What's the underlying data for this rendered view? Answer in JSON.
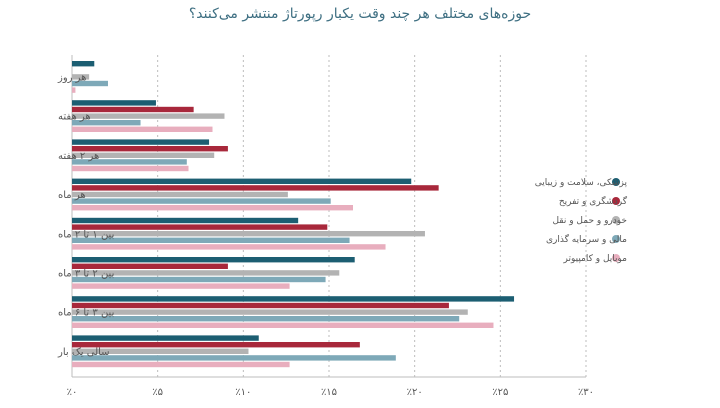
{
  "chart_data": {
    "type": "bar",
    "orientation": "horizontal",
    "title": "حوزه‌های مختلف هر چند وقت یکبار رپورتاژ منتشر می‌کنند؟",
    "xlabel": "",
    "ylabel": "",
    "xlim": [
      0,
      30
    ],
    "x_ticks": [
      0,
      5,
      10,
      15,
      20,
      25,
      30
    ],
    "x_tick_labels": [
      "٪۰",
      "٪۵",
      "٪۱۰",
      "٪۱۵",
      "٪۲۰",
      "٪۲۵",
      "٪۳۰"
    ],
    "grid": true,
    "legend_position": "right",
    "categories": [
      "هر روز",
      "هر هفته",
      "هر ۲ هفته",
      "هر ماه",
      "بین ۱ تا ۲ ماه",
      "بین ۲ تا ۳ ماه",
      "بین ۳ تا ۶ ماه",
      "سالی یک بار"
    ],
    "series": [
      {
        "name": "پزشکی، سلامت و زیبایی",
        "color": "#1c5e72",
        "values": [
          1.3,
          4.9,
          8.0,
          19.8,
          13.2,
          16.5,
          25.8,
          10.9
        ]
      },
      {
        "name": "گردشگری و تفریح",
        "color": "#a8283b",
        "values": [
          0.0,
          7.1,
          9.1,
          21.4,
          14.9,
          9.1,
          22.0,
          16.8
        ]
      },
      {
        "name": "خودرو و حمل و نقل",
        "color": "#b3b3b3",
        "values": [
          1.0,
          8.9,
          8.3,
          12.6,
          20.6,
          15.6,
          23.1,
          10.3
        ]
      },
      {
        "name": "مالی و سرمایه گذاری",
        "color": "#7ea9b8",
        "values": [
          2.1,
          4.0,
          6.7,
          15.1,
          16.2,
          14.8,
          22.6,
          18.9
        ]
      },
      {
        "name": "موبایل و کامپیوتر",
        "color": "#e8aebe",
        "values": [
          0.2,
          8.2,
          6.8,
          16.4,
          18.3,
          12.7,
          24.6,
          12.7
        ]
      }
    ]
  }
}
